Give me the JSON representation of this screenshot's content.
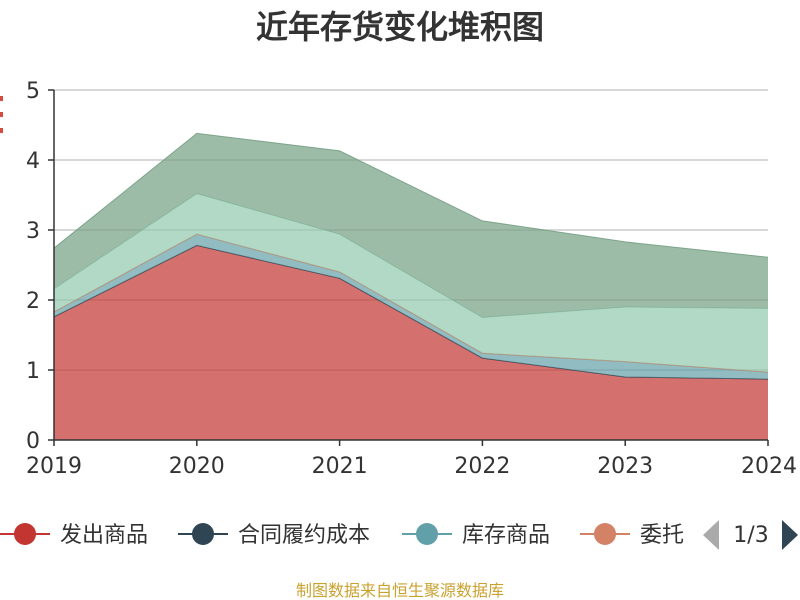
{
  "chart_data": {
    "type": "area",
    "stacked": true,
    "title": "近年存货变化堆积图",
    "xlabel": "",
    "ylabel": "",
    "x": [
      "2019",
      "2020",
      "2021",
      "2022",
      "2023",
      "2024"
    ],
    "ylim": [
      0,
      5
    ],
    "yticks": [
      "0",
      "1",
      "2",
      "3",
      "4",
      "5"
    ],
    "grid": true,
    "legend_position": "bottom",
    "series": [
      {
        "name": "发出商品",
        "color": "#c23531",
        "values": [
          1.76,
          2.78,
          2.31,
          1.17,
          0.9,
          0.87
        ]
      },
      {
        "name": "合同履约成本",
        "color": "#2f4554",
        "values": [
          0.0,
          0.0,
          0.0,
          0.0,
          0.0,
          0.0
        ]
      },
      {
        "name": "库存商品",
        "color": "#61a0a8",
        "values": [
          0.07,
          0.16,
          0.09,
          0.07,
          0.22,
          0.1
        ]
      },
      {
        "name": "委托加工物资",
        "color": "#d48265",
        "values": [
          0.0,
          0.0,
          0.0,
          0.0,
          0.0,
          0.0
        ]
      },
      {
        "name": "",
        "color": "#91c7ae",
        "values": [
          0.33,
          0.58,
          0.54,
          0.51,
          0.78,
          0.91
        ]
      },
      {
        "name": "",
        "color": "#749f83",
        "values": [
          0.58,
          0.86,
          1.19,
          1.38,
          0.93,
          0.73
        ]
      }
    ],
    "legend": {
      "visible_items": [
        "发出商品",
        "合同履约成本",
        "库存商品",
        "委托"
      ],
      "page_indicator": "1/3"
    }
  },
  "source_text": "制图数据来自恒生聚源数据库",
  "icons": {
    "prev_page": "triangle-left-icon",
    "next_page": "triangle-right-icon"
  }
}
